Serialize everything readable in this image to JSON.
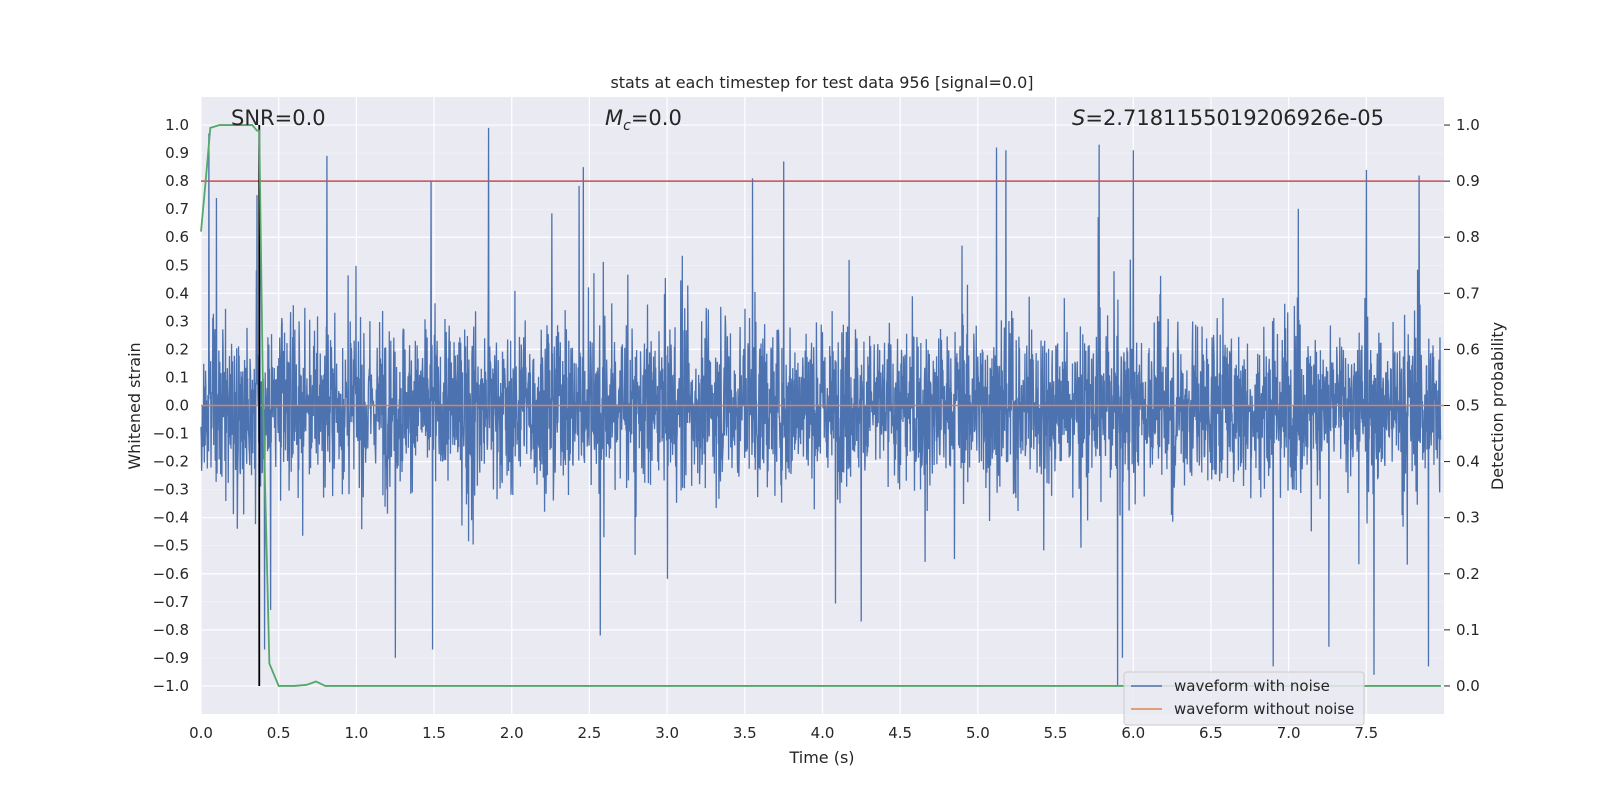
{
  "chart_data": {
    "type": "line",
    "title": "stats at each timestep for test data 956 [signal=0.0]",
    "xlabel": "Time (s)",
    "ylabel": "Whitened strain",
    "y2label": "Detection probability",
    "xlim": [
      0.0,
      8.0
    ],
    "ylim": [
      -1.1,
      1.1
    ],
    "y2lim": [
      -0.05,
      1.05
    ],
    "xticks": [
      0.0,
      0.5,
      1.0,
      1.5,
      2.0,
      2.5,
      3.0,
      3.5,
      4.0,
      4.5,
      5.0,
      5.5,
      6.0,
      6.5,
      7.0,
      7.5
    ],
    "xtick_labels": [
      "0.0",
      "0.5",
      "1.0",
      "1.5",
      "2.0",
      "2.5",
      "3.0",
      "3.5",
      "4.0",
      "4.5",
      "5.0",
      "5.5",
      "6.0",
      "6.5",
      "7.0",
      "7.5"
    ],
    "yticks": [
      1.0,
      0.9,
      0.8,
      0.7,
      0.6,
      0.5,
      0.4,
      0.3,
      0.2,
      0.1,
      0.0,
      -0.1,
      -0.2,
      -0.3,
      -0.4,
      -0.5,
      -0.6,
      -0.7,
      -0.8,
      -0.9,
      -1.0
    ],
    "ytick_labels": [
      "1.0",
      "0.9",
      "0.8",
      "0.7",
      "0.6",
      "0.5",
      "0.4",
      "0.3",
      "0.2",
      "0.1",
      "0.0",
      "−0.1",
      "−0.2",
      "−0.3",
      "−0.4",
      "−0.5",
      "−0.6",
      "−0.7",
      "−0.8",
      "−0.9",
      "−1.0"
    ],
    "y2ticks": [
      1.0,
      0.9,
      0.8,
      0.7,
      0.6,
      0.5,
      0.4,
      0.3,
      0.2,
      0.1,
      0.0
    ],
    "y2tick_labels": [
      "1.0",
      "0.9",
      "0.8",
      "0.7",
      "0.6",
      "0.5",
      "0.4",
      "0.3",
      "0.2",
      "0.1",
      "0.0"
    ],
    "annotations": {
      "snr": "SNR=0.0",
      "mc_symbol": "M",
      "mc_sub": "c",
      "mc_value": "=0.0",
      "s_symbol": "S",
      "s_value": "=2.7181155019206926e-05"
    },
    "series": [
      {
        "name": "waveform with noise",
        "color": "#4c72b0",
        "axis": "left",
        "description": "dense whitened-strain noise, typical envelope about ±0.3–0.6",
        "n_samples": 4096,
        "seed": 956,
        "peaks": [
          {
            "x": 0.05,
            "y": 0.97
          },
          {
            "x": 0.1,
            "y": 0.74
          },
          {
            "x": 0.36,
            "y": 0.75
          },
          {
            "x": 0.81,
            "y": 0.89
          },
          {
            "x": 1.48,
            "y": 0.8
          },
          {
            "x": 1.85,
            "y": 0.99
          },
          {
            "x": 2.46,
            "y": 0.85
          },
          {
            "x": 3.55,
            "y": 0.81
          },
          {
            "x": 3.75,
            "y": 0.87
          },
          {
            "x": 5.12,
            "y": 0.92
          },
          {
            "x": 5.18,
            "y": 0.91
          },
          {
            "x": 5.78,
            "y": 0.93
          },
          {
            "x": 6.0,
            "y": 0.91
          },
          {
            "x": 7.5,
            "y": 0.84
          },
          {
            "x": 7.84,
            "y": 0.82
          },
          {
            "x": 0.41,
            "y": -0.87
          },
          {
            "x": 1.25,
            "y": -0.9
          },
          {
            "x": 1.49,
            "y": -0.87
          },
          {
            "x": 2.57,
            "y": -0.82
          },
          {
            "x": 4.25,
            "y": -0.77
          },
          {
            "x": 5.9,
            "y": -1.0
          },
          {
            "x": 5.93,
            "y": -0.9
          },
          {
            "x": 6.9,
            "y": -0.93
          },
          {
            "x": 7.26,
            "y": -0.86
          },
          {
            "x": 7.55,
            "y": -0.96
          },
          {
            "x": 7.9,
            "y": -0.93
          }
        ]
      },
      {
        "name": "waveform without noise",
        "color": "#dd8452",
        "axis": "left",
        "x": [
          0.0,
          8.0
        ],
        "y": [
          0.0,
          0.0
        ]
      },
      {
        "name": "detection probability",
        "color": "#55a868",
        "axis": "right",
        "x": [
          0.0,
          0.03,
          0.06,
          0.12,
          0.18,
          0.24,
          0.3,
          0.33,
          0.36,
          0.375,
          0.4,
          0.44,
          0.5,
          0.6,
          0.68,
          0.74,
          0.8,
          0.86,
          1.0,
          2.0,
          4.0,
          6.0,
          7.98
        ],
        "y": [
          0.81,
          0.9,
          0.995,
          1.0,
          1.0,
          1.0,
          1.0,
          1.0,
          0.99,
          0.99,
          0.5,
          0.04,
          0.0,
          0.0,
          0.002,
          0.008,
          0.0,
          0.0,
          0.0,
          0.0,
          0.0,
          0.0,
          0.0
        ]
      }
    ],
    "reference_lines": [
      {
        "orientation": "horizontal",
        "axis": "right",
        "y": 0.9,
        "color": "#c44e52"
      },
      {
        "orientation": "vertical",
        "x": 0.375,
        "y_from": -1.0,
        "y_to": 1.0,
        "color": "#000000"
      }
    ],
    "legend": {
      "position": "lower-right",
      "entries": [
        {
          "label": "waveform with noise",
          "color": "#4c72b0"
        },
        {
          "label": "waveform without noise",
          "color": "#dd8452"
        }
      ]
    },
    "grid": true,
    "style": {
      "plot_background": "#eaeaf2",
      "grid_color": "#ffffff"
    }
  }
}
